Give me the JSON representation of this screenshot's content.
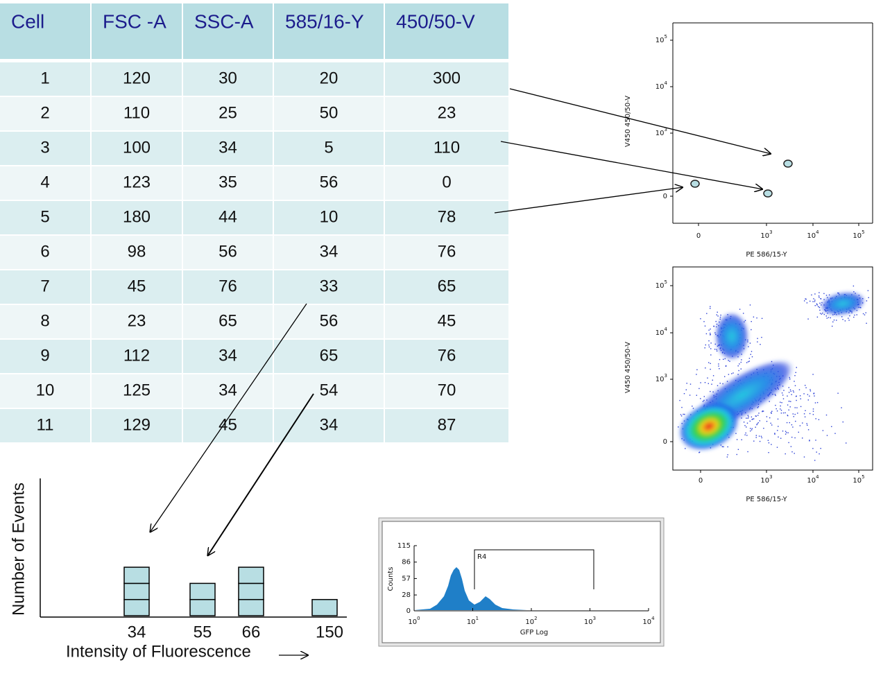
{
  "table": {
    "header": [
      "Cell",
      "FSC -A",
      "SSC-A",
      "585/16-Y",
      "450/50-V"
    ],
    "rows": [
      [
        1,
        120,
        30,
        20,
        300
      ],
      [
        2,
        110,
        25,
        50,
        23
      ],
      [
        3,
        100,
        34,
        5,
        110
      ],
      [
        4,
        123,
        35,
        56,
        0
      ],
      [
        5,
        180,
        44,
        10,
        78
      ],
      [
        6,
        98,
        56,
        34,
        76
      ],
      [
        7,
        45,
        76,
        33,
        65
      ],
      [
        8,
        23,
        65,
        56,
        45
      ],
      [
        9,
        112,
        34,
        65,
        76
      ],
      [
        10,
        125,
        34,
        54,
        70
      ],
      [
        11,
        129,
        45,
        34,
        87
      ]
    ]
  },
  "dot_plot": {
    "x_label": "PE 586/15-Y",
    "y_label": "V450 450/50-V",
    "xticks": [
      "0",
      {
        "base": "10",
        "exponent": 3
      },
      {
        "base": "10",
        "exponent": 4
      },
      {
        "base": "10",
        "exponent": 5
      }
    ],
    "yticks": [
      "0",
      {
        "base": "10",
        "exponent": 3
      },
      {
        "base": "10",
        "exponent": 4
      },
      {
        "base": "10",
        "exponent": 5
      }
    ]
  },
  "density_plot": {
    "x_label": "PE 586/15-Y",
    "y_label": "V450 450/50-V",
    "xticks": [
      "0",
      {
        "base": "10",
        "exponent": 3
      },
      {
        "base": "10",
        "exponent": 4
      },
      {
        "base": "10",
        "exponent": 5
      }
    ],
    "yticks": [
      "0",
      {
        "base": "10",
        "exponent": 3
      },
      {
        "base": "10",
        "exponent": 4
      },
      {
        "base": "10",
        "exponent": 5
      }
    ]
  },
  "chart_data": {
    "type": "stack",
    "y_label": "Number of Events",
    "x_label": "Intensity of Fluorescence",
    "categories": [
      "34",
      "55",
      "66",
      "150"
    ],
    "values": [
      3,
      2,
      3,
      1
    ],
    "color": "#b8dee3"
  },
  "histogram": {
    "y_label": "Counts",
    "x_label": "GFP Log",
    "gate": "R4",
    "yticks": [
      0,
      28,
      57,
      86,
      115
    ],
    "xticks": [
      {
        "base": "10",
        "exponent": 0
      },
      {
        "base": "10",
        "exponent": 1
      },
      {
        "base": "10",
        "exponent": 2
      },
      {
        "base": "10",
        "exponent": 3
      },
      {
        "base": "10",
        "exponent": 4
      }
    ]
  }
}
